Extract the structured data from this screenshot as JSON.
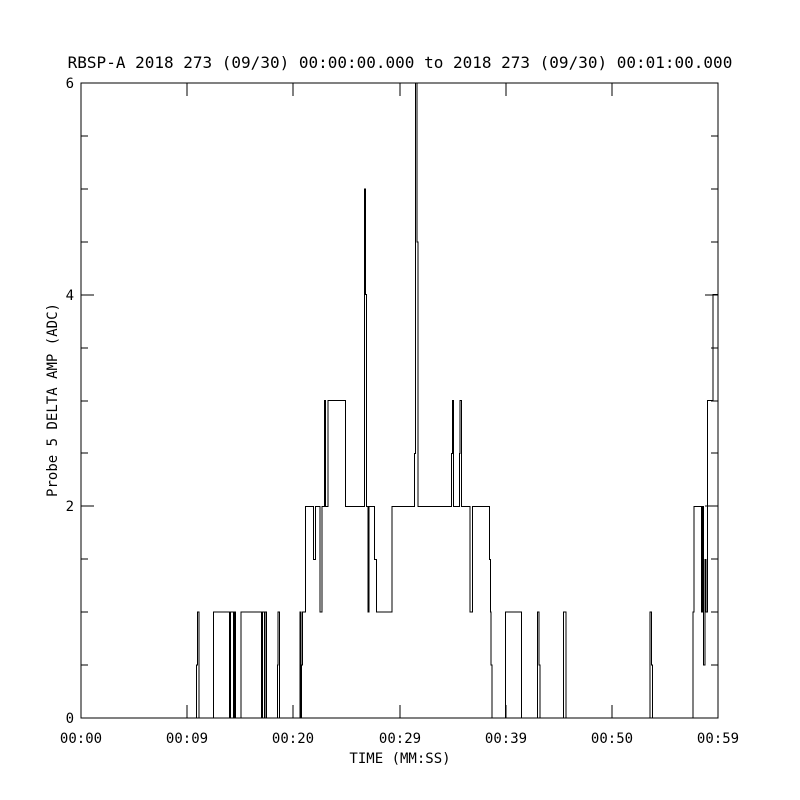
{
  "chart_data": {
    "type": "line",
    "subtype": "step",
    "title": "RBSP-A 2018 273 (09/30) 00:00:00.000 to 2018 273 (09/30) 00:01:00.000",
    "xlabel": "TIME (MM:SS)",
    "ylabel": "Probe 5 DELTA AMP (ADC)",
    "series_name": "Probe 5 DELTA AMP",
    "background": "#ffffff",
    "line_color": "#000000",
    "grid": false,
    "legend": "none",
    "xlim_seconds": [
      0,
      59
    ],
    "ylim": [
      0,
      6
    ],
    "x_ticks": {
      "labels": [
        "00:00",
        "00:09",
        "00:20",
        "00:29",
        "00:39",
        "00:50",
        "00:59"
      ],
      "positions_seconds": [
        0,
        9.833,
        19.667,
        29.5,
        39.333,
        49.167,
        59
      ]
    },
    "y_ticks": {
      "major_values": [
        0,
        2,
        4,
        6
      ],
      "labels": [
        "0",
        "2",
        "4",
        "6"
      ],
      "minor_step": 0.5
    },
    "steps": [
      [
        0,
        0
      ],
      [
        10.72,
        0.5
      ],
      [
        10.78,
        1
      ],
      [
        10.95,
        0
      ],
      [
        12.25,
        1
      ],
      [
        13.75,
        0
      ],
      [
        13.85,
        1
      ],
      [
        14.12,
        0
      ],
      [
        14.2,
        1
      ],
      [
        14.3,
        0
      ],
      [
        14.82,
        1
      ],
      [
        16.72,
        0
      ],
      [
        16.8,
        1
      ],
      [
        16.98,
        0
      ],
      [
        17.05,
        1
      ],
      [
        17.2,
        0
      ],
      [
        18.18,
        0.5
      ],
      [
        18.24,
        1
      ],
      [
        18.38,
        0
      ],
      [
        20.3,
        1
      ],
      [
        20.38,
        0
      ],
      [
        20.44,
        0.5
      ],
      [
        20.5,
        1
      ],
      [
        20.78,
        2
      ],
      [
        21.55,
        1.5
      ],
      [
        21.72,
        2
      ],
      [
        22.15,
        1
      ],
      [
        22.32,
        2
      ],
      [
        22.54,
        3
      ],
      [
        22.64,
        2
      ],
      [
        22.9,
        3
      ],
      [
        24.5,
        2
      ],
      [
        26.28,
        5
      ],
      [
        26.36,
        4
      ],
      [
        26.46,
        2
      ],
      [
        26.56,
        1
      ],
      [
        26.68,
        2
      ],
      [
        27.2,
        1.5
      ],
      [
        27.38,
        1
      ],
      [
        28.8,
        2
      ],
      [
        30.9,
        2.5
      ],
      [
        31.0,
        6
      ],
      [
        31.1,
        4.5
      ],
      [
        31.2,
        2
      ],
      [
        34.32,
        2.5
      ],
      [
        34.4,
        3
      ],
      [
        34.5,
        2
      ],
      [
        35.05,
        2.5
      ],
      [
        35.12,
        3
      ],
      [
        35.25,
        2
      ],
      [
        36.05,
        1
      ],
      [
        36.25,
        2
      ],
      [
        37.85,
        1.5
      ],
      [
        37.92,
        1
      ],
      [
        37.98,
        0.5
      ],
      [
        38.05,
        0
      ],
      [
        39.3,
        1
      ],
      [
        40.8,
        0
      ],
      [
        42.28,
        1
      ],
      [
        42.4,
        0.5
      ],
      [
        42.5,
        0
      ],
      [
        44.7,
        1
      ],
      [
        44.9,
        0
      ],
      [
        52.7,
        1
      ],
      [
        52.82,
        0.5
      ],
      [
        52.95,
        0
      ],
      [
        56.7,
        1
      ],
      [
        56.78,
        2
      ],
      [
        57.45,
        1
      ],
      [
        57.55,
        2
      ],
      [
        57.68,
        0.5
      ],
      [
        57.78,
        1.5
      ],
      [
        57.88,
        1
      ],
      [
        58.05,
        3
      ],
      [
        58.55,
        4
      ]
    ]
  }
}
